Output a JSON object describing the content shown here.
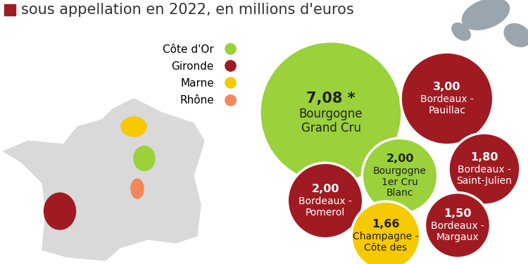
{
  "chart_data": {
    "type": "bubble",
    "title": "sous appellation en 2022, en millions d'euros",
    "categories": [
      "Bourgogne Grand Cru",
      "Bordeaux - Pauillac",
      "Bourgogne 1er Cru Blanc",
      "Bordeaux - Saint-Julien",
      "Bordeaux - Pomerol",
      "Champagne - Côte des",
      "Bordeaux - Margaux"
    ],
    "values": [
      7.08,
      3.0,
      2.0,
      1.8,
      2.0,
      1.66,
      1.5
    ],
    "value_labels": [
      "7,08 *",
      "3,00",
      "2,00",
      "1,80",
      "2,00",
      "1,66",
      "1,50"
    ],
    "groups": [
      "Côte d'Or",
      "Gironde",
      "Côte d'Or",
      "Gironde",
      "Gironde",
      "Marne",
      "Gironde"
    ],
    "series": [
      {
        "name": "Côte d'Or",
        "color": "#9bd13a"
      },
      {
        "name": "Gironde",
        "color": "#a01a22"
      },
      {
        "name": "Marne",
        "color": "#f7c900"
      },
      {
        "name": "Rhône",
        "color": "#f2875a"
      }
    ],
    "legend": "upper left",
    "data_labels": true,
    "tick_labels": false
  }
}
